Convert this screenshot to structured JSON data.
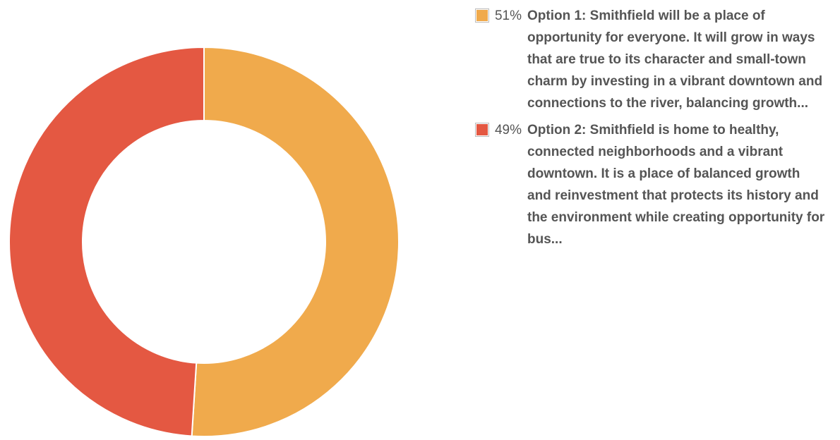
{
  "chart_data": {
    "type": "donut",
    "categories": [
      "Option 1: Smithfield will be a place of opportunity for everyone. It will grow in ways that are true to its character and small-town charm by investing in a vibrant downtown and connections to the river, balancing growth...",
      "Option 2: Smithfield is home to healthy, connected neighborhoods and a vibrant downtown. It is a place of balanced growth and reinvestment that protects its history and the environment while creating opportunity for bus..."
    ],
    "values": [
      51,
      49
    ],
    "value_labels": [
      "51%",
      "49%"
    ],
    "colors": [
      "#f0aa4c",
      "#e45842"
    ],
    "legend": "right"
  }
}
